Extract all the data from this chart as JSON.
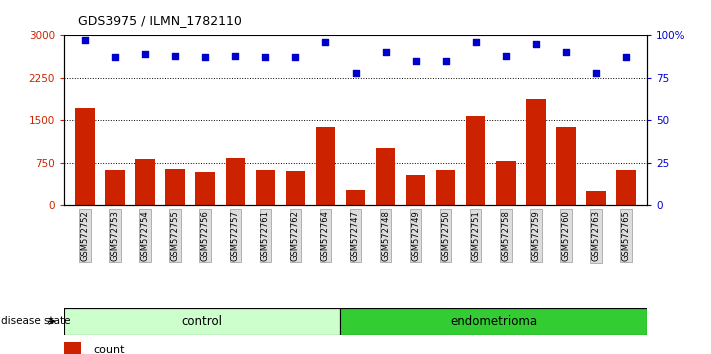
{
  "title": "GDS3975 / ILMN_1782110",
  "samples": [
    "GSM572752",
    "GSM572753",
    "GSM572754",
    "GSM572755",
    "GSM572756",
    "GSM572757",
    "GSM572761",
    "GSM572762",
    "GSM572764",
    "GSM572747",
    "GSM572748",
    "GSM572749",
    "GSM572750",
    "GSM572751",
    "GSM572758",
    "GSM572759",
    "GSM572760",
    "GSM572763",
    "GSM572765"
  ],
  "counts": [
    1720,
    620,
    820,
    640,
    580,
    830,
    620,
    610,
    1380,
    270,
    1020,
    530,
    630,
    1580,
    780,
    1880,
    1380,
    250,
    630
  ],
  "percentile_ranks": [
    97,
    87,
    89,
    88,
    87,
    88,
    87,
    87,
    96,
    78,
    90,
    85,
    85,
    96,
    88,
    95,
    90,
    78,
    87
  ],
  "group_labels": [
    "control",
    "endometrioma"
  ],
  "group_sizes": [
    9,
    10
  ],
  "control_color": "#ccffcc",
  "endometrioma_color": "#33cc33",
  "bar_color": "#cc2200",
  "dot_color": "#0000cc",
  "ylim_left": [
    0,
    3000
  ],
  "ylim_right": [
    0,
    100
  ],
  "yticks_left": [
    0,
    750,
    1500,
    2250,
    3000
  ],
  "yticks_right": [
    0,
    25,
    50,
    75,
    100
  ],
  "grid_values": [
    750,
    1500,
    2250
  ],
  "tick_bg_color": "#dddddd"
}
